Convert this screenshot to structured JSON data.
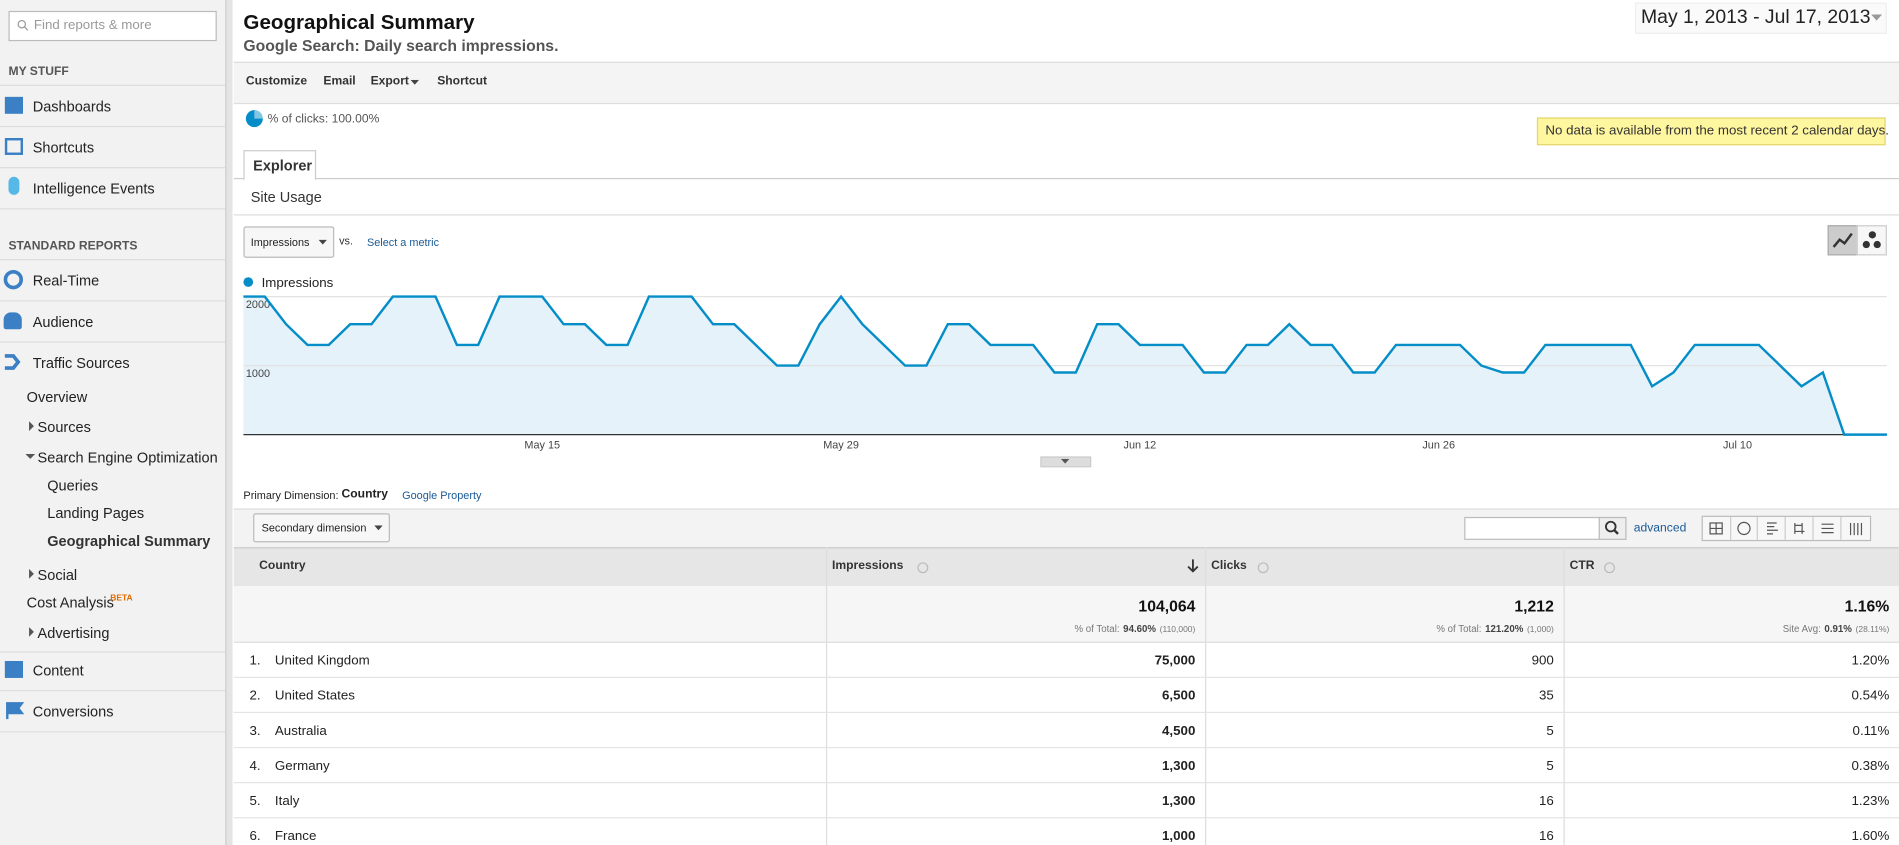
{
  "search_placeholder": "Find reports & more",
  "sidebar": {
    "sections": [
      "MY STUFF",
      "STANDARD REPORTS"
    ],
    "my_stuff": [
      "Dashboards",
      "Shortcuts",
      "Intelligence Events"
    ],
    "reports": [
      "Real-Time",
      "Audience",
      "Traffic Sources"
    ],
    "traffic_sources": [
      "Overview",
      "Sources",
      "Search Engine Optimization"
    ],
    "seo": [
      "Queries",
      "Landing Pages",
      "Geographical Summary"
    ],
    "more_traffic": [
      "Social",
      "Cost Analysis",
      "Advertising"
    ],
    "beta": "BETA",
    "bottom": [
      "Content",
      "Conversions"
    ]
  },
  "header": {
    "title": "Geographical Summary",
    "subtitle": "Google Search: Daily search impressions.",
    "date_range": "May 1, 2013 - Jul 17, 2013"
  },
  "toolbar": [
    "Customize",
    "Email",
    "Export",
    "Shortcut"
  ],
  "segment": "% of clicks: 100.00%",
  "notice": "No data is available from the most recent 2 calendar days.",
  "tabs": [
    "Explorer",
    "Site Usage"
  ],
  "metric_picker": {
    "metric": "Impressions",
    "vs": "vs.",
    "select": "Select a metric"
  },
  "chart_data": {
    "type": "line",
    "categories": [
      null,
      null,
      null,
      null,
      null,
      null,
      null,
      null,
      null,
      null,
      null,
      null,
      null,
      null,
      "May 15",
      null,
      null,
      null,
      null,
      null,
      null,
      null,
      null,
      null,
      null,
      null,
      null,
      null,
      "May 29",
      null,
      null,
      null,
      null,
      null,
      null,
      null,
      null,
      null,
      null,
      null,
      null,
      null,
      "Jun 12",
      null,
      null,
      null,
      null,
      null,
      null,
      null,
      null,
      null,
      null,
      null,
      null,
      null,
      "Jun 26",
      null,
      null,
      null,
      null,
      null,
      null,
      null,
      null,
      null,
      null,
      null,
      null,
      null,
      "Jul 10",
      null,
      null,
      null,
      null,
      null,
      null,
      null
    ],
    "series": [
      {
        "name": "Impressions",
        "color": "#058dc7",
        "values": [
          2000,
          2000,
          1600,
          1300,
          1300,
          1600,
          1600,
          2000,
          2000,
          2000,
          1300,
          1300,
          2000,
          2000,
          2000,
          1600,
          1600,
          1300,
          1300,
          2000,
          2000,
          2000,
          1600,
          1600,
          1300,
          1000,
          1000,
          1600,
          2000,
          1600,
          1300,
          1000,
          1000,
          1600,
          1600,
          1300,
          1300,
          1300,
          900,
          900,
          1600,
          1600,
          1300,
          1300,
          1300,
          900,
          900,
          1300,
          1300,
          1600,
          1300,
          1300,
          900,
          900,
          1300,
          1300,
          1300,
          1300,
          1000,
          900,
          900,
          1300,
          1300,
          1300,
          1300,
          1300,
          700,
          900,
          1300,
          1300,
          1300,
          1300,
          1000,
          700,
          900,
          0,
          0,
          0
        ]
      }
    ],
    "ylim": [
      0,
      2000
    ],
    "yticks": [
      1000,
      2000
    ],
    "grid": true
  },
  "dimension": {
    "label": "Primary Dimension:",
    "active": "Country",
    "other": "Google Property",
    "secondary": "Secondary dimension",
    "advanced": "advanced"
  },
  "table": {
    "columns": [
      "Country",
      "Impressions",
      "Clicks",
      "CTR"
    ],
    "totals": [
      {
        "value": "104,064",
        "note": "% of Total:",
        "share": "94.60%",
        "base": "(110,000)"
      },
      {
        "value": "1,212",
        "note": "% of Total:",
        "share": "121.20%",
        "base": "(1,000)"
      },
      {
        "value": "1.16%",
        "note": "Site Avg:",
        "share": "0.91%",
        "base": "(28.11%)"
      }
    ],
    "rows": [
      [
        "1.",
        "United Kingdom",
        "75,000",
        "900",
        "1.20%"
      ],
      [
        "2.",
        "United States",
        "6,500",
        "35",
        "0.54%"
      ],
      [
        "3.",
        "Australia",
        "4,500",
        "5",
        "0.11%"
      ],
      [
        "4.",
        "Germany",
        "1,300",
        "5",
        "0.38%"
      ],
      [
        "5.",
        "Italy",
        "1,300",
        "16",
        "1.23%"
      ],
      [
        "6.",
        "France",
        "1,000",
        "16",
        "1.60%"
      ]
    ]
  }
}
